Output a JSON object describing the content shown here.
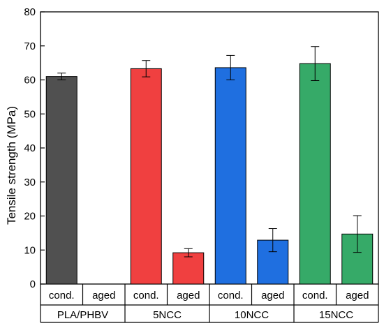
{
  "chart_data": {
    "type": "bar",
    "title": "",
    "xlabel": "",
    "ylabel": "Tensile strength (MPa)",
    "ylim": [
      0,
      80
    ],
    "yticks": [
      0,
      10,
      20,
      30,
      40,
      50,
      60,
      70,
      80
    ],
    "grid": false,
    "legend": "none",
    "groups": [
      "PLA/PHBV",
      "5NCC",
      "10NCC",
      "15NCC"
    ],
    "subcategories": [
      "cond.",
      "aged"
    ],
    "bars": [
      {
        "group": "PLA/PHBV",
        "condition": "cond.",
        "value": 61.0,
        "error": 1.0,
        "color": "#505050"
      },
      {
        "group": "PLA/PHBV",
        "condition": "aged",
        "value": null,
        "error": null,
        "color": "#505050"
      },
      {
        "group": "5NCC",
        "condition": "cond.",
        "value": 63.3,
        "error": 2.4,
        "color": "#f04040"
      },
      {
        "group": "5NCC",
        "condition": "aged",
        "value": 9.2,
        "error": 1.2,
        "color": "#f04040"
      },
      {
        "group": "10NCC",
        "condition": "cond.",
        "value": 63.6,
        "error": 3.6,
        "color": "#1f6fe0"
      },
      {
        "group": "10NCC",
        "condition": "aged",
        "value": 12.9,
        "error": 3.4,
        "color": "#1f6fe0"
      },
      {
        "group": "15NCC",
        "condition": "cond.",
        "value": 64.8,
        "error": 5.0,
        "color": "#36aa68"
      },
      {
        "group": "15NCC",
        "condition": "aged",
        "value": 14.7,
        "error": 5.4,
        "color": "#36aa68"
      }
    ]
  }
}
